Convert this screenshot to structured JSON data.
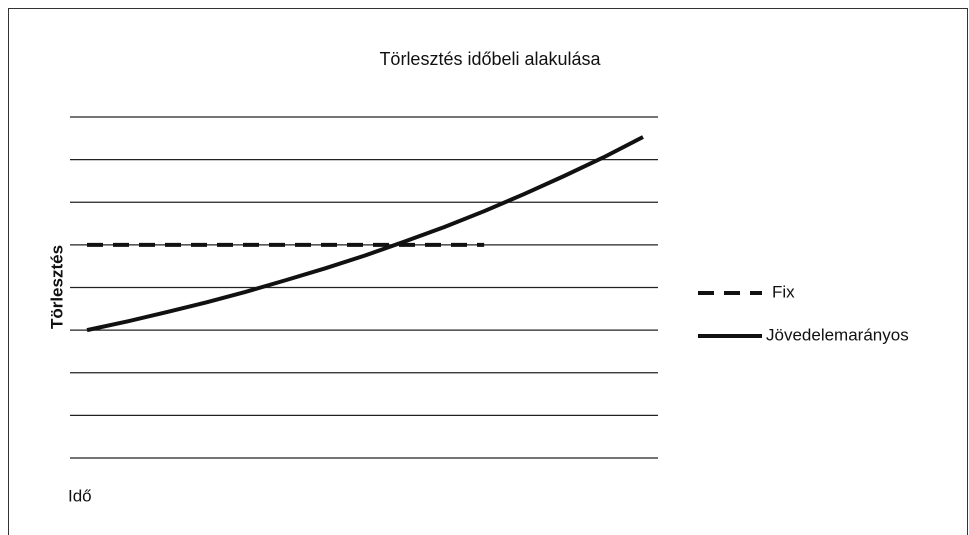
{
  "chart_data": {
    "type": "line",
    "title": "Törlesztés időbeli alakulása",
    "ylabel": "Törlesztés",
    "xlabel": "Idő",
    "x": [
      0,
      1,
      2,
      3,
      4,
      5,
      6,
      7,
      8,
      9,
      10,
      11,
      12,
      13,
      14
    ],
    "xlim": [
      0,
      14
    ],
    "ylim": [
      0,
      8
    ],
    "yticks": [
      0,
      1,
      2,
      3,
      4,
      5,
      6,
      7,
      8
    ],
    "grid": true,
    "legend": "right",
    "series": [
      {
        "name": "Fix",
        "color": "#111111",
        "line_style": "dashed",
        "values": [
          5,
          5,
          5,
          5,
          5,
          5,
          5,
          5,
          5,
          5,
          5,
          null,
          null,
          null,
          null
        ]
      },
      {
        "name": "Jövedelemarányos",
        "color": "#111111",
        "line_style": "solid",
        "values": [
          3.0,
          3.2,
          3.42,
          3.65,
          3.9,
          4.17,
          4.45,
          4.75,
          5.08,
          5.42,
          5.79,
          6.19,
          6.61,
          7.05,
          7.53
        ]
      }
    ]
  }
}
